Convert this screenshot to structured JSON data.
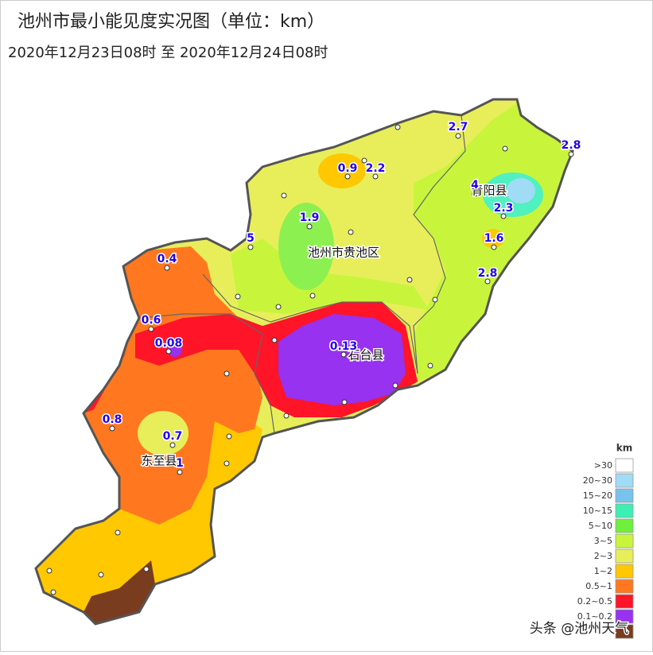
{
  "header": {
    "title": "池州市最小能见度实况图（单位：km）",
    "subtitle": "2020年12月23日08时   至  2020年12月24日08时"
  },
  "counties": [
    "青阳县",
    "池州市贵池区",
    "石台县",
    "东至县"
  ],
  "stations": [
    0.9,
    2.2,
    2.7,
    2.8,
    4,
    2.3,
    1.9,
    5,
    0.4,
    1.6,
    2.8,
    0.6,
    0.08,
    0.13,
    0.8,
    0.7,
    1
  ],
  "legend": {
    "title": "km",
    "items": [
      {
        "label": ">30",
        "color": "#ffffff"
      },
      {
        "label": "20~30",
        "color": "#a0dcf5"
      },
      {
        "label": "15~20",
        "color": "#78c3ee"
      },
      {
        "label": "10~15",
        "color": "#3cf0b4"
      },
      {
        "label": "5~10",
        "color": "#6ef03c"
      },
      {
        "label": "3~5",
        "color": "#c8f53c"
      },
      {
        "label": "2~3",
        "color": "#e8ee5a"
      },
      {
        "label": "1~2",
        "color": "#ffc800"
      },
      {
        "label": "0.5~1",
        "color": "#ff7820"
      },
      {
        "label": "0.2~0.5",
        "color": "#ff1428"
      },
      {
        "label": "0.1~0.2",
        "color": "#9632f0"
      },
      {
        "color": "#7a3c1e"
      }
    ]
  },
  "watermark": "头条 @池州天气"
}
